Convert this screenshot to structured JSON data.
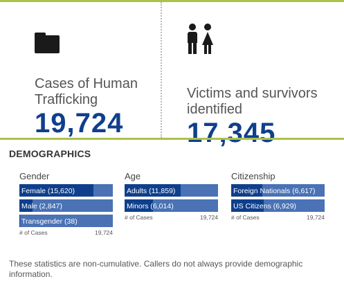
{
  "colors": {
    "accent_green": "#a9c24a",
    "navy": "#0f3f8c",
    "bar_light": "#4a72b5"
  },
  "stats": [
    {
      "icon": "folder-icon",
      "label": "Cases of Human Trafficking",
      "value": "19,724"
    },
    {
      "icon": "people-icon",
      "label": "Victims and survivors identified",
      "value": "17,345"
    }
  ],
  "demographics": {
    "title": "DEMOGRAPHICS",
    "total": 19724,
    "axis_label": "# of Cases",
    "axis_max": "19,724",
    "groups": [
      {
        "title": "Gender",
        "bars": [
          {
            "label": "Female (15,620)",
            "value": 15620
          },
          {
            "label": "Male (2,847)",
            "value": 2847
          },
          {
            "label": "Transgender (38)",
            "value": 38
          }
        ]
      },
      {
        "title": "Age",
        "bars": [
          {
            "label": "Adults (11,859)",
            "value": 11859
          },
          {
            "label": "Minors (6,014)",
            "value": 6014
          }
        ]
      },
      {
        "title": "Citizenship",
        "bars": [
          {
            "label": "Foreign Nationals (6,617)",
            "value": 6617
          },
          {
            "label": "US Citizens (6,929)",
            "value": 6929
          }
        ]
      }
    ]
  },
  "note": "These statistics are non-cumulative. Callers do not always provide demographic information."
}
